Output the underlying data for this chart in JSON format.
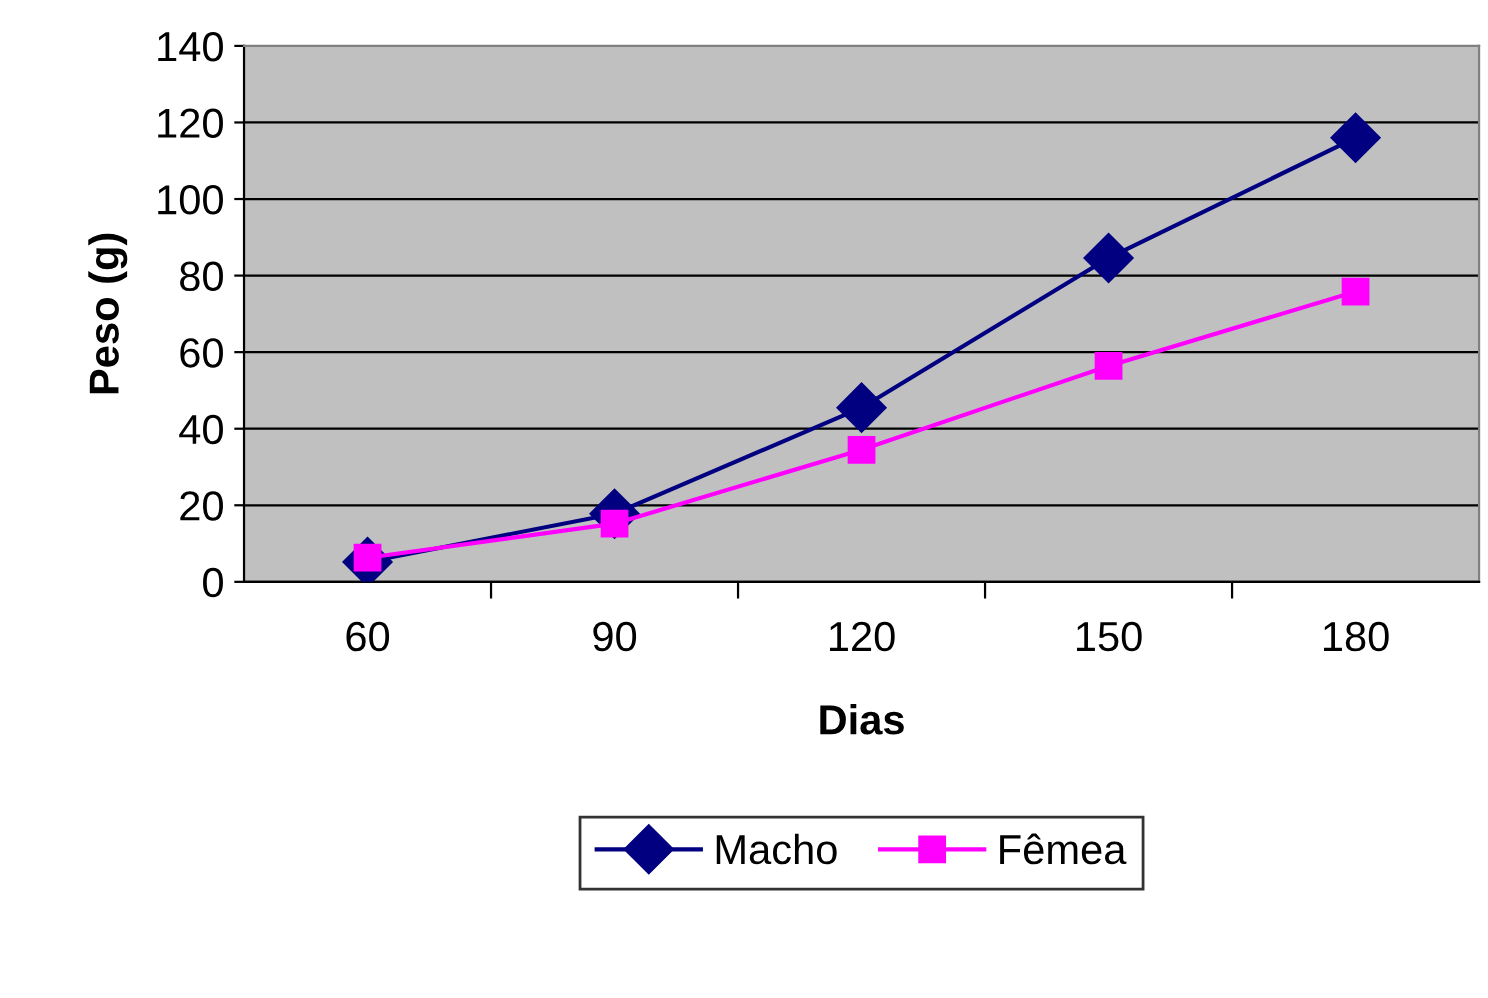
{
  "chart_data": {
    "type": "line",
    "xlabel": "Dias",
    "ylabel": "Peso (g)",
    "categories": [
      "60",
      "90",
      "120",
      "150",
      "180"
    ],
    "series": [
      {
        "name": "Macho",
        "color": "#000080",
        "marker": "diamond",
        "values": [
          5.2,
          17.8,
          45.5,
          84.6,
          116
        ]
      },
      {
        "name": "Fêmea",
        "color": "#ff00ff",
        "marker": "square",
        "values": [
          6.3,
          15.2,
          34.5,
          56.4,
          75.8
        ]
      }
    ],
    "ylim": [
      0,
      140
    ],
    "yticks": [
      0,
      20,
      40,
      60,
      80,
      100,
      120,
      140
    ],
    "grid": "y",
    "legend": "bottom"
  }
}
